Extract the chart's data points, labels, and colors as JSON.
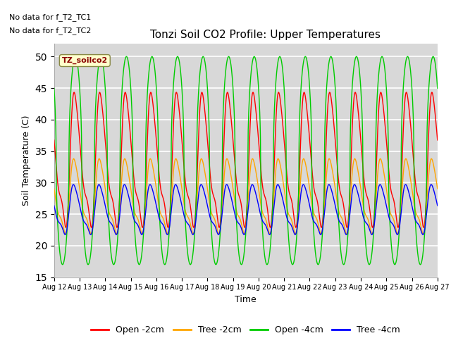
{
  "title": "Tonzi Soil CO2 Profile: Upper Temperatures",
  "ylabel": "Soil Temperature (C)",
  "xlabel": "Time",
  "annotation_line1": "No data for f_T2_TC1",
  "annotation_line2": "No data for f_T2_TC2",
  "label_box": "TZ_soilco2",
  "ylim": [
    15,
    52
  ],
  "yticks": [
    15,
    20,
    25,
    30,
    35,
    40,
    45,
    50
  ],
  "bg_color": "#d8d8d8",
  "num_days": 15,
  "start_day": 12,
  "legend": [
    "Open -2cm",
    "Tree -2cm",
    "Open -4cm",
    "Tree -4cm"
  ],
  "legend_colors": [
    "#ff0000",
    "#ffa500",
    "#00cc00",
    "#0000ff"
  ],
  "open_2cm_amp": 13.5,
  "open_2cm_base": 33.0,
  "open_2cm_phase": 0.0,
  "tree_2cm_amp": 7.5,
  "tree_2cm_base": 27.5,
  "tree_2cm_phase": 0.12,
  "open_4cm_amp": 16.5,
  "open_4cm_base": 33.5,
  "open_4cm_phase": -0.05,
  "tree_4cm_amp": 5.0,
  "tree_4cm_base": 25.5,
  "tree_4cm_phase": 0.18,
  "figsize": [
    6.4,
    4.8
  ],
  "dpi": 100
}
